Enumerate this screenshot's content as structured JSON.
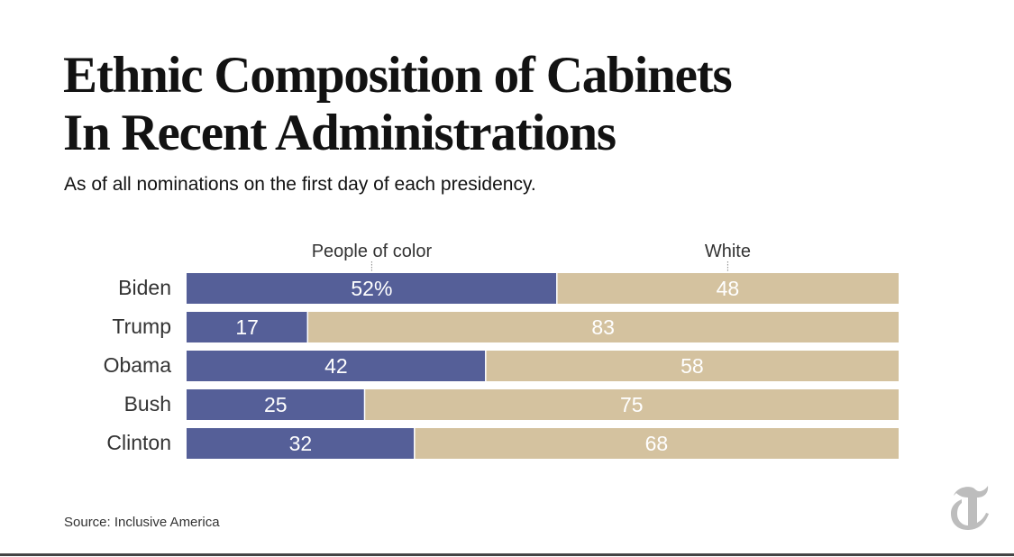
{
  "title_lines": [
    "Ethnic Composition of Cabinets",
    "In Recent Administrations"
  ],
  "subtitle": "As of all nominations on the first day of each presidency.",
  "source": "Source: Inclusive America",
  "logo_icon": "nyt-t-logo",
  "chart_data": {
    "type": "bar",
    "orientation": "horizontal",
    "stacked": true,
    "categories": [
      "Biden",
      "Trump",
      "Obama",
      "Bush",
      "Clinton"
    ],
    "series": [
      {
        "name": "People of color",
        "values": [
          52,
          17,
          42,
          25,
          32
        ],
        "color": "#555f98",
        "text_color": "#ffffff"
      },
      {
        "name": "White",
        "values": [
          48,
          83,
          58,
          75,
          68
        ],
        "color": "#d4c29f",
        "text_color": "#ffffff"
      }
    ],
    "value_labels": [
      [
        "52%",
        "48"
      ],
      [
        "17",
        "83"
      ],
      [
        "42",
        "58"
      ],
      [
        "25",
        "75"
      ],
      [
        "32",
        "68"
      ]
    ],
    "xlim": [
      0,
      100
    ],
    "legend": "top, above first bar",
    "grid": false,
    "label_color": "#333333"
  }
}
